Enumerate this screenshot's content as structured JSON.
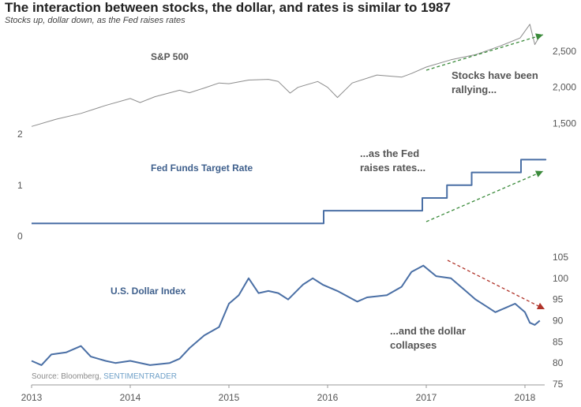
{
  "title": "The interaction between stocks, the dollar, and rates is similar to 1987",
  "subtitle": "Stocks up, dollar down, as the Fed raises rates",
  "source": {
    "prefix": "Source: Bloomberg, ",
    "brand": "SENTIMENTRADER"
  },
  "colors": {
    "sp500": "#8c8c8c",
    "fed": "#4a6fa5",
    "dollar": "#4a6fa5",
    "green_arrow": "#3a8a3a",
    "red_arrow": "#b0342a",
    "axis_text": "#555555",
    "annotation_text": "#555555",
    "series_label": "#3e5f8c"
  },
  "chart_data": [
    {
      "type": "line",
      "series": [
        {
          "name": "S&P 500",
          "x": [
            2013.0,
            2013.25,
            2013.5,
            2013.75,
            2014.0,
            2014.1,
            2014.25,
            2014.5,
            2014.6,
            2014.75,
            2014.9,
            2015.0,
            2015.2,
            2015.4,
            2015.5,
            2015.62,
            2015.7,
            2015.9,
            2016.0,
            2016.1,
            2016.25,
            2016.5,
            2016.75,
            2016.85,
            2017.0,
            2017.25,
            2017.5,
            2017.75,
            2017.95,
            2018.05,
            2018.1,
            2018.15
          ],
          "values": [
            1460,
            1560,
            1640,
            1750,
            1845,
            1790,
            1870,
            1960,
            1925,
            1990,
            2060,
            2050,
            2100,
            2110,
            2080,
            1920,
            2000,
            2080,
            2000,
            1860,
            2060,
            2170,
            2140,
            2190,
            2280,
            2380,
            2450,
            2570,
            2680,
            2870,
            2590,
            2710
          ]
        }
      ],
      "yticks": [
        1500,
        2000,
        2500
      ],
      "ylim": [
        1300,
        2900
      ],
      "annotation": [
        "Stocks have been",
        "rallying..."
      ]
    },
    {
      "type": "line",
      "series": [
        {
          "name": "Fed Funds Target Rate",
          "x": [
            2013.0,
            2015.96,
            2015.96,
            2016.96,
            2016.96,
            2017.21,
            2017.21,
            2017.46,
            2017.46,
            2017.96,
            2017.96,
            2018.21,
            2018.21,
            2018.15
          ],
          "values": [
            0.25,
            0.25,
            0.5,
            0.5,
            0.75,
            0.75,
            1.0,
            1.0,
            1.25,
            1.25,
            1.5,
            1.5,
            1.5,
            1.5
          ]
        }
      ],
      "yticks": [
        0,
        1,
        2
      ],
      "ylim": [
        -0.1,
        2.0
      ],
      "annotation": [
        "...as the Fed",
        "raises rates..."
      ]
    },
    {
      "type": "line",
      "series": [
        {
          "name": "U.S. Dollar Index",
          "x": [
            2013.0,
            2013.1,
            2013.2,
            2013.35,
            2013.5,
            2013.6,
            2013.75,
            2013.85,
            2014.0,
            2014.2,
            2014.4,
            2014.5,
            2014.6,
            2014.75,
            2014.9,
            2015.0,
            2015.1,
            2015.2,
            2015.3,
            2015.4,
            2015.5,
            2015.6,
            2015.75,
            2015.85,
            2015.95,
            2016.1,
            2016.3,
            2016.4,
            2016.6,
            2016.75,
            2016.85,
            2016.97,
            2017.1,
            2017.25,
            2017.4,
            2017.5,
            2017.6,
            2017.7,
            2017.8,
            2017.9,
            2018.0,
            2018.05,
            2018.1,
            2018.15
          ],
          "values": [
            80.5,
            79.5,
            82.0,
            82.5,
            84.0,
            81.5,
            80.5,
            80.0,
            80.5,
            79.5,
            80.0,
            81.0,
            83.5,
            86.5,
            88.5,
            94.0,
            96.0,
            100.0,
            96.5,
            97.0,
            96.5,
            95.0,
            98.5,
            100.0,
            98.5,
            97.0,
            94.5,
            95.5,
            96.0,
            98.0,
            101.5,
            103.0,
            100.5,
            100.0,
            97.0,
            95.0,
            93.5,
            92.0,
            93.0,
            94.0,
            92.0,
            89.5,
            89.0,
            90.0
          ]
        }
      ],
      "yticks": [
        75,
        80,
        85,
        90,
        95,
        100,
        105
      ],
      "ylim": [
        75,
        105
      ],
      "annotation": [
        "...and the dollar",
        "collapses"
      ]
    }
  ],
  "x_axis": {
    "ticks": [
      "2013",
      "2014",
      "2015",
      "2016",
      "2017",
      "2018"
    ],
    "range": [
      2013.0,
      2018.2
    ]
  }
}
